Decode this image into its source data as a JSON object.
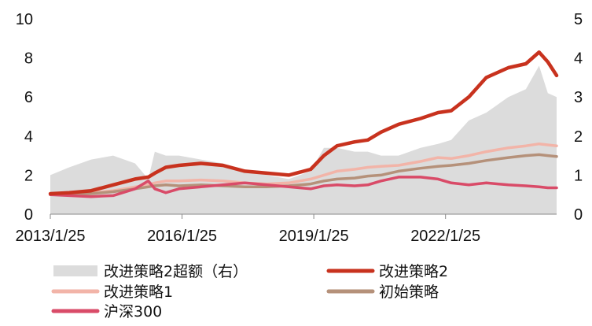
{
  "chart_data": {
    "type": "line",
    "x_tick_labels": [
      "2013/1/25",
      "2016/1/25",
      "2019/1/25",
      "2022/1/25"
    ],
    "x_ticks": [
      2013.07,
      2016.07,
      2019.07,
      2022.07
    ],
    "xlim": [
      2013.07,
      2024.6
    ],
    "y_left": {
      "ylim": [
        0,
        10
      ],
      "ticks": [
        0,
        2,
        4,
        6,
        8,
        10
      ]
    },
    "y_right": {
      "ylim": [
        0,
        5
      ],
      "ticks": [
        0,
        1,
        2,
        3,
        4,
        5
      ]
    },
    "x": [
      2013.07,
      2013.5,
      2014.0,
      2014.5,
      2015.0,
      2015.3,
      2015.45,
      2015.7,
      2016.0,
      2016.5,
      2017.0,
      2017.5,
      2018.0,
      2018.5,
      2019.0,
      2019.3,
      2019.6,
      2020.0,
      2020.3,
      2020.6,
      2021.0,
      2021.5,
      2021.9,
      2022.2,
      2022.6,
      2023.0,
      2023.5,
      2023.9,
      2024.2,
      2024.4,
      2024.6
    ],
    "series": [
      {
        "name": "改进策略2超额（右）",
        "type": "area",
        "axis": "right",
        "color": "#dcdcdc",
        "values": [
          1.0,
          1.2,
          1.4,
          1.5,
          1.3,
          0.9,
          1.6,
          1.5,
          1.5,
          1.4,
          1.3,
          1.1,
          1.0,
          0.9,
          1.1,
          1.7,
          1.7,
          1.6,
          1.6,
          1.5,
          1.5,
          1.7,
          1.8,
          1.9,
          2.4,
          2.6,
          3.0,
          3.2,
          3.8,
          3.1,
          3.0
        ]
      },
      {
        "name": "改进策略2",
        "type": "line",
        "axis": "left",
        "color": "#c8321e",
        "values": [
          1.05,
          1.1,
          1.2,
          1.5,
          1.8,
          1.9,
          2.1,
          2.4,
          2.5,
          2.6,
          2.5,
          2.2,
          2.1,
          2.0,
          2.3,
          3.0,
          3.5,
          3.7,
          3.8,
          4.2,
          4.6,
          4.9,
          5.2,
          5.3,
          6.0,
          7.0,
          7.5,
          7.7,
          8.3,
          7.8,
          7.1
        ]
      },
      {
        "name": "改进策略1",
        "type": "line",
        "axis": "left",
        "color": "#f2b4a8",
        "values": [
          1.0,
          1.05,
          1.1,
          1.2,
          1.4,
          1.5,
          1.6,
          1.7,
          1.7,
          1.75,
          1.7,
          1.6,
          1.55,
          1.6,
          1.8,
          2.0,
          2.2,
          2.3,
          2.4,
          2.45,
          2.5,
          2.7,
          2.9,
          2.85,
          3.0,
          3.2,
          3.4,
          3.5,
          3.6,
          3.55,
          3.5
        ]
      },
      {
        "name": "初始策略",
        "type": "line",
        "axis": "left",
        "color": "#b5917a",
        "values": [
          1.0,
          1.02,
          1.05,
          1.15,
          1.3,
          1.4,
          1.45,
          1.5,
          1.45,
          1.5,
          1.45,
          1.4,
          1.4,
          1.45,
          1.55,
          1.7,
          1.8,
          1.85,
          1.95,
          2.0,
          2.2,
          2.35,
          2.45,
          2.5,
          2.6,
          2.75,
          2.9,
          3.0,
          3.05,
          3.0,
          2.95
        ]
      },
      {
        "name": "沪深300",
        "type": "line",
        "axis": "left",
        "color": "#d94b68",
        "values": [
          1.0,
          0.95,
          0.9,
          0.95,
          1.3,
          1.7,
          1.3,
          1.1,
          1.3,
          1.4,
          1.5,
          1.6,
          1.5,
          1.4,
          1.3,
          1.45,
          1.5,
          1.45,
          1.5,
          1.7,
          1.9,
          1.9,
          1.8,
          1.6,
          1.5,
          1.6,
          1.5,
          1.45,
          1.4,
          1.35,
          1.35
        ]
      }
    ],
    "legend": "bottom"
  }
}
